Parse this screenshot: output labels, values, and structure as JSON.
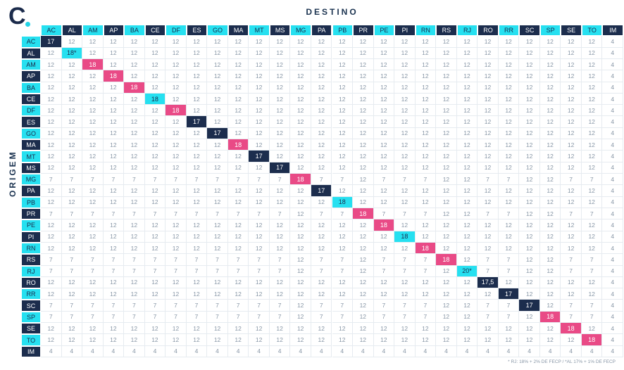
{
  "header": {
    "logo": "C",
    "title": "DESTINO",
    "side_label": "ORIGEM"
  },
  "table": {
    "columns": [
      "AC",
      "AL",
      "AM",
      "AP",
      "BA",
      "CE",
      "DF",
      "ES",
      "GO",
      "MA",
      "MT",
      "MS",
      "MG",
      "PA",
      "PB",
      "PR",
      "PE",
      "PI",
      "RN",
      "RS",
      "RJ",
      "RO",
      "RR",
      "SC",
      "SP",
      "SE",
      "TO",
      "IM"
    ],
    "row_labels": [
      "AC",
      "AL",
      "AM",
      "AP",
      "BA",
      "CE",
      "DF",
      "ES",
      "GO",
      "MA",
      "MT",
      "MS",
      "MG",
      "PA",
      "PB",
      "PR",
      "PE",
      "PI",
      "RN",
      "RS",
      "RJ",
      "RO",
      "RR",
      "SC",
      "SP",
      "SE",
      "TO",
      "IM"
    ],
    "diagonal_colors": [
      "#1c2d4d",
      "#26e0f0",
      "#e94a86",
      "#e94a86",
      "#e94a86",
      "#26e0f0",
      "#e94a86",
      "#1c2d4d",
      "#1c2d4d",
      "#e94a86",
      "#1c2d4d",
      "#1c2d4d",
      "#e94a86",
      "#1c2d4d",
      "#26e0f0",
      "#e94a86",
      "#e94a86",
      "#26e0f0",
      "#e94a86",
      "#e94a86",
      "#26e0f0",
      "#1c2d4d",
      "#1c2d4d",
      "#1c2d4d",
      "#e94a86",
      "#e94a86",
      "#e94a86"
    ],
    "rows": [
      [
        17,
        12,
        12,
        12,
        12,
        12,
        12,
        12,
        12,
        12,
        12,
        12,
        12,
        12,
        12,
        12,
        12,
        12,
        12,
        12,
        12,
        12,
        12,
        12,
        12,
        12,
        12,
        4
      ],
      [
        12,
        "18*",
        12,
        12,
        12,
        12,
        12,
        12,
        12,
        12,
        12,
        12,
        12,
        12,
        12,
        12,
        12,
        12,
        12,
        12,
        12,
        12,
        12,
        12,
        12,
        12,
        12,
        4
      ],
      [
        12,
        12,
        18,
        12,
        12,
        12,
        12,
        12,
        12,
        12,
        12,
        12,
        12,
        12,
        12,
        12,
        12,
        12,
        12,
        12,
        12,
        12,
        12,
        12,
        12,
        12,
        12,
        4
      ],
      [
        12,
        12,
        12,
        18,
        12,
        12,
        12,
        12,
        12,
        12,
        12,
        12,
        12,
        12,
        12,
        12,
        12,
        12,
        12,
        12,
        12,
        12,
        12,
        12,
        12,
        12,
        12,
        4
      ],
      [
        12,
        12,
        12,
        12,
        18,
        12,
        12,
        12,
        12,
        12,
        12,
        12,
        12,
        12,
        12,
        12,
        12,
        12,
        12,
        12,
        12,
        12,
        12,
        12,
        12,
        12,
        12,
        4
      ],
      [
        12,
        12,
        12,
        12,
        12,
        18,
        12,
        12,
        12,
        12,
        12,
        12,
        12,
        12,
        12,
        12,
        12,
        12,
        12,
        12,
        12,
        12,
        12,
        12,
        12,
        12,
        12,
        4
      ],
      [
        12,
        12,
        12,
        12,
        12,
        12,
        18,
        12,
        12,
        12,
        12,
        12,
        12,
        12,
        12,
        12,
        12,
        12,
        12,
        12,
        12,
        12,
        12,
        12,
        12,
        12,
        12,
        4
      ],
      [
        12,
        12,
        12,
        12,
        12,
        12,
        12,
        17,
        12,
        12,
        12,
        12,
        12,
        12,
        12,
        12,
        12,
        12,
        12,
        12,
        12,
        12,
        12,
        12,
        12,
        12,
        12,
        4
      ],
      [
        12,
        12,
        12,
        12,
        12,
        12,
        12,
        12,
        17,
        12,
        12,
        12,
        12,
        12,
        12,
        12,
        12,
        12,
        12,
        12,
        12,
        12,
        12,
        12,
        12,
        12,
        12,
        4
      ],
      [
        12,
        12,
        12,
        12,
        12,
        12,
        12,
        12,
        12,
        18,
        12,
        12,
        12,
        12,
        12,
        12,
        12,
        12,
        12,
        12,
        12,
        12,
        12,
        12,
        12,
        12,
        12,
        4
      ],
      [
        12,
        12,
        12,
        12,
        12,
        12,
        12,
        12,
        12,
        12,
        17,
        12,
        12,
        12,
        12,
        12,
        12,
        12,
        12,
        12,
        12,
        12,
        12,
        12,
        12,
        12,
        12,
        4
      ],
      [
        12,
        12,
        12,
        12,
        12,
        12,
        12,
        12,
        12,
        12,
        12,
        17,
        12,
        12,
        12,
        12,
        12,
        12,
        12,
        12,
        12,
        12,
        12,
        12,
        12,
        12,
        12,
        4
      ],
      [
        7,
        7,
        7,
        7,
        7,
        7,
        7,
        7,
        7,
        7,
        7,
        7,
        18,
        7,
        7,
        12,
        7,
        7,
        7,
        12,
        12,
        7,
        7,
        12,
        12,
        7,
        7,
        4
      ],
      [
        12,
        12,
        12,
        12,
        12,
        12,
        12,
        12,
        12,
        12,
        12,
        12,
        12,
        17,
        12,
        12,
        12,
        12,
        12,
        12,
        12,
        12,
        12,
        12,
        12,
        12,
        12,
        4
      ],
      [
        12,
        12,
        12,
        12,
        12,
        12,
        12,
        12,
        12,
        12,
        12,
        12,
        12,
        12,
        18,
        12,
        12,
        12,
        12,
        12,
        12,
        12,
        12,
        12,
        12,
        12,
        12,
        4
      ],
      [
        7,
        7,
        7,
        7,
        7,
        7,
        7,
        7,
        7,
        7,
        7,
        7,
        12,
        7,
        7,
        18,
        7,
        7,
        7,
        12,
        12,
        7,
        7,
        12,
        12,
        7,
        7,
        4
      ],
      [
        12,
        12,
        12,
        12,
        12,
        12,
        12,
        12,
        12,
        12,
        12,
        12,
        12,
        12,
        12,
        12,
        18,
        12,
        12,
        12,
        12,
        12,
        12,
        12,
        12,
        12,
        12,
        4
      ],
      [
        12,
        12,
        12,
        12,
        12,
        12,
        12,
        12,
        12,
        12,
        12,
        12,
        12,
        12,
        12,
        12,
        12,
        18,
        12,
        12,
        12,
        12,
        12,
        12,
        12,
        12,
        12,
        4
      ],
      [
        12,
        12,
        12,
        12,
        12,
        12,
        12,
        12,
        12,
        12,
        12,
        12,
        12,
        12,
        12,
        12,
        12,
        12,
        18,
        12,
        12,
        12,
        12,
        12,
        12,
        12,
        12,
        4
      ],
      [
        7,
        7,
        7,
        7,
        7,
        7,
        7,
        7,
        7,
        7,
        7,
        7,
        12,
        7,
        7,
        12,
        7,
        7,
        7,
        18,
        12,
        7,
        7,
        12,
        12,
        7,
        7,
        4
      ],
      [
        7,
        7,
        7,
        7,
        7,
        7,
        7,
        7,
        7,
        7,
        7,
        7,
        12,
        7,
        7,
        12,
        7,
        7,
        7,
        12,
        "20*",
        7,
        7,
        12,
        12,
        7,
        7,
        4
      ],
      [
        12,
        12,
        12,
        12,
        12,
        12,
        12,
        12,
        12,
        12,
        12,
        12,
        12,
        12,
        12,
        12,
        12,
        12,
        12,
        12,
        12,
        "17,5",
        12,
        12,
        12,
        12,
        12,
        4
      ],
      [
        12,
        12,
        12,
        12,
        12,
        12,
        12,
        12,
        12,
        12,
        12,
        12,
        12,
        12,
        12,
        12,
        12,
        12,
        12,
        12,
        12,
        12,
        17,
        12,
        12,
        12,
        12,
        4
      ],
      [
        7,
        7,
        7,
        7,
        7,
        7,
        7,
        7,
        7,
        7,
        7,
        7,
        12,
        7,
        7,
        12,
        7,
        7,
        7,
        12,
        12,
        7,
        7,
        17,
        12,
        7,
        7,
        4
      ],
      [
        7,
        7,
        7,
        7,
        7,
        7,
        7,
        7,
        7,
        7,
        7,
        7,
        12,
        7,
        7,
        12,
        7,
        7,
        7,
        12,
        12,
        7,
        7,
        12,
        18,
        7,
        7,
        4
      ],
      [
        12,
        12,
        12,
        12,
        12,
        12,
        12,
        12,
        12,
        12,
        12,
        12,
        12,
        12,
        12,
        12,
        12,
        12,
        12,
        12,
        12,
        12,
        12,
        12,
        12,
        18,
        12,
        4
      ],
      [
        12,
        12,
        12,
        12,
        12,
        12,
        12,
        12,
        12,
        12,
        12,
        12,
        12,
        12,
        12,
        12,
        12,
        12,
        12,
        12,
        12,
        12,
        12,
        12,
        12,
        12,
        18,
        4
      ],
      [
        4,
        4,
        4,
        4,
        4,
        4,
        4,
        4,
        4,
        4,
        4,
        4,
        4,
        4,
        4,
        4,
        4,
        4,
        4,
        4,
        4,
        4,
        4,
        4,
        4,
        4,
        4,
        4
      ]
    ]
  },
  "footnote": "* RJ: 18% + 2% DE FECP / *AL 17% + 1% DE FECP"
}
